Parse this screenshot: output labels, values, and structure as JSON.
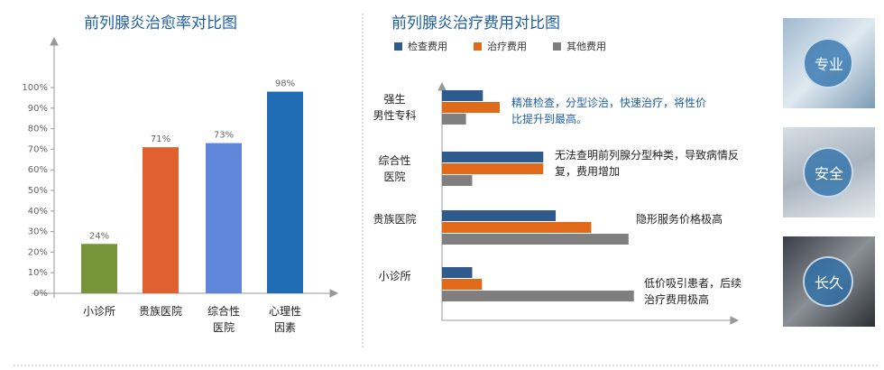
{
  "chart_data": [
    {
      "type": "bar",
      "title": "前列腺炎治愈率对比图",
      "categories": [
        "小诊所",
        "贵族医院",
        "综合性\n医院",
        "心理性\n因素"
      ],
      "values": [
        24,
        71,
        73,
        98
      ],
      "value_labels": [
        "24%",
        "71%",
        "73%",
        "98%"
      ],
      "colors": [
        "#76953b",
        "#e0612f",
        "#5f86d8",
        "#1f6cb4"
      ],
      "ylim": [
        0,
        100
      ],
      "yticks": [
        {
          "value": 0,
          "label": "0%"
        },
        {
          "value": 10,
          "label": "10%"
        },
        {
          "value": 20,
          "label": "20%"
        },
        {
          "value": 30,
          "label": "30%"
        },
        {
          "value": 40,
          "label": "40%"
        },
        {
          "value": 50,
          "label": "50%"
        },
        {
          "value": 60,
          "label": "60%"
        },
        {
          "value": 70,
          "label": "70%"
        },
        {
          "value": 80,
          "label": "80%"
        },
        {
          "value": 90,
          "label": "90%"
        },
        {
          "value": 100,
          "label": "100%"
        }
      ],
      "grid": false
    },
    {
      "type": "hbar",
      "title": "前列腺炎治疗费用对比图",
      "categories": [
        "强生\n男性专科",
        "综合性\n医院",
        "贵族医院",
        "小诊所"
      ],
      "series": [
        {
          "name": "检查费用",
          "color": "#2f5a8e",
          "values": [
            46,
            114,
            128,
            34
          ]
        },
        {
          "name": "治疗费用",
          "color": "#e0691a",
          "values": [
            65,
            114,
            168,
            45
          ]
        },
        {
          "name": "其他费用",
          "color": "#7f7f7f",
          "values": [
            27,
            34,
            210,
            216
          ]
        }
      ],
      "xlim": [
        0,
        330
      ],
      "annotations": [
        "精准检查，分型诊治，快速治疗，将性价\n比提升到最高。",
        "无法查明前列腺分型种类，导致病情反\n复，费用增加",
        "隐形服务价格极高",
        "低价吸引患者，后续\n治疗费用极高"
      ]
    }
  ],
  "tiles": [
    "专业",
    "安全",
    "长久"
  ]
}
